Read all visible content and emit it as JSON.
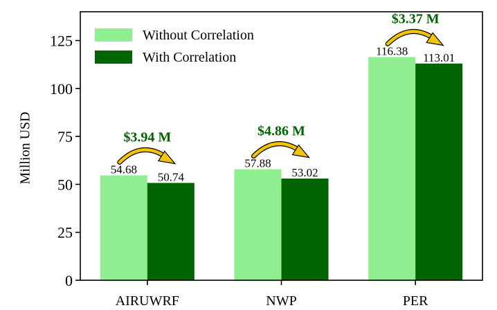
{
  "chart_data": {
    "type": "bar",
    "title": "",
    "xlabel": "",
    "ylabel": "Million USD",
    "ylim": [
      0,
      140
    ],
    "yticks": [
      0,
      25,
      50,
      75,
      100,
      125
    ],
    "categories": [
      "AIRUWRF",
      "NWP",
      "PER"
    ],
    "series": [
      {
        "name": "Without Correlation",
        "color": "#90ee90",
        "values": [
          54.68,
          57.88,
          116.38
        ],
        "labels": [
          "54.68",
          "57.88",
          "116.38"
        ]
      },
      {
        "name": "With Correlation",
        "color": "#006400",
        "values": [
          50.74,
          53.02,
          113.01
        ],
        "labels": [
          "50.74",
          "53.02",
          "113.01"
        ]
      }
    ],
    "annotations": [
      {
        "text": "$3.94 M",
        "category": "AIRUWRF"
      },
      {
        "text": "$4.86 M",
        "category": "NWP"
      },
      {
        "text": "$3.37 M",
        "category": "PER"
      }
    ],
    "legend": "top-left",
    "annotation_color": "#006400",
    "arrow_color": "#f5c400"
  }
}
